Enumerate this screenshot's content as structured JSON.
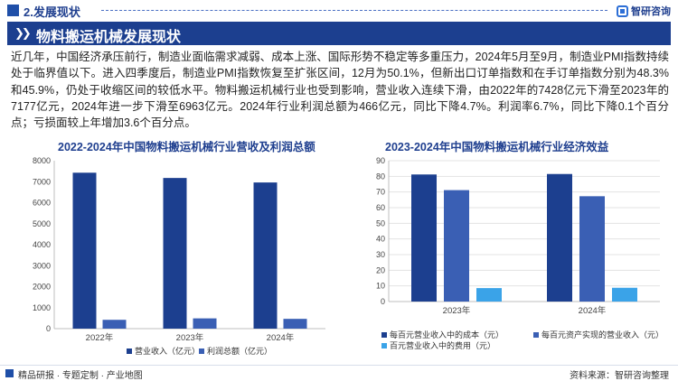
{
  "header": {
    "section": "2.发展现状",
    "logo_text": "智研咨询",
    "title": "物料搬运机械发展现状"
  },
  "body_text": "近几年，中国经济承压前行，制造业面临需求减弱、成本上涨、国际形势不稳定等多重压力，2024年5月至9月，制造业PMI指数持续处于临界值以下。进入四季度后，制造业PMI指数恢复至扩张区间，12月为50.1%，但新出口订单指数和在手订单指数分别为48.3%和45.9%，仍处于收缩区间的较低水平。物料搬运机械行业也受到影响，营业收入连续下滑，由2022年的7428亿元下滑至2023年的7177亿元，2024年进一步下滑至6963亿元。2024年行业利润总额为466亿元，同比下降4.7%。利润率6.7%，同比下降0.1个百分点；亏损面较上年增加3.6个百分点。",
  "footer": {
    "left": "精品研报 · 专题定制 · 产业地图",
    "right": "资料来源：智研咨询整理"
  },
  "colors": {
    "navy": "#1c3f8f",
    "blue": "#3a5fb4",
    "light_blue": "#3aa3e8",
    "grid": "#e3e3e3",
    "axis_text": "#444444"
  },
  "chart_data": [
    {
      "type": "bar",
      "title": "2022-2024年中国物料搬运机械行业营收及利润总额",
      "categories": [
        "2022年",
        "2023年",
        "2024年"
      ],
      "ylim": [
        0,
        8000
      ],
      "yticks": [
        0,
        1000,
        2000,
        3000,
        4000,
        5000,
        6000,
        7000,
        8000
      ],
      "grid": false,
      "legend_position": "bottom",
      "series": [
        {
          "name": "营业收入（亿元）",
          "values": [
            7428,
            7177,
            6963
          ],
          "color": "#1c3f8f"
        },
        {
          "name": "利润总额（亿元）",
          "values": [
            420,
            489,
            466
          ],
          "color": "#3a5fb4"
        }
      ]
    },
    {
      "type": "bar",
      "title": "2023-2024年中国物料搬运机械行业经济效益",
      "categories": [
        "2023年",
        "2024年"
      ],
      "ylim": [
        0,
        90
      ],
      "yticks": [
        0,
        10,
        20,
        30,
        40,
        50,
        60,
        70,
        80,
        90
      ],
      "grid": true,
      "legend_position": "bottom",
      "series": [
        {
          "name": "每百元营业收入中的成本（元）",
          "values": [
            81.2,
            81.5
          ],
          "color": "#1c3f8f"
        },
        {
          "name": "每百元资产实现的营业收入（元）",
          "values": [
            71.2,
            67.3
          ],
          "color": "#3a5fb4"
        },
        {
          "name": "百元营业收入中的费用（元）",
          "values": [
            8.6,
            8.8
          ],
          "color": "#3aa3e8"
        }
      ]
    }
  ]
}
